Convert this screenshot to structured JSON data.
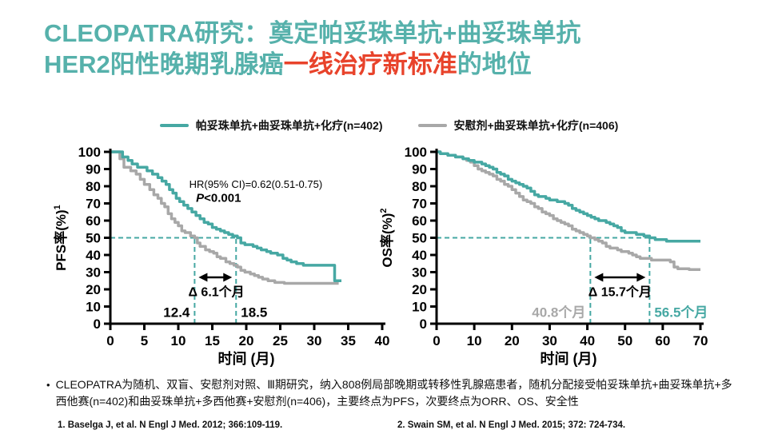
{
  "colors": {
    "teal": "#46A8A3",
    "title_teal": "#56B1AB",
    "red": "#E8432B",
    "gray": "#A8A8A8",
    "black": "#000000"
  },
  "title": {
    "line1": "CLEOPATRA研究：奠定帕妥珠单抗+曲妥珠单抗",
    "line2_pre": "HER2阳性晚期乳腺癌",
    "line2_highlight": "一线治疗新标准",
    "line2_post": "的地位"
  },
  "legend": {
    "items": [
      {
        "label": "帕妥珠单抗+曲妥珠单抗+化疗(n=402)",
        "color_key": "teal"
      },
      {
        "label": "安慰剂+曲妥珠单抗+化疗(n=406)",
        "color_key": "gray"
      }
    ]
  },
  "chart_data": [
    {
      "type": "line",
      "subtype": "kaplan_meier_step",
      "xlabel": "时间 (月)",
      "ylabel": "PFS率(%)",
      "ylabel_sup": "1",
      "xlim": [
        0,
        40
      ],
      "ylim": [
        0,
        100
      ],
      "xticks": [
        0,
        5,
        10,
        15,
        20,
        25,
        30,
        35,
        40
      ],
      "yticks": [
        0,
        10,
        20,
        30,
        40,
        50,
        60,
        70,
        80,
        90,
        100
      ],
      "grid": false,
      "annotations": {
        "hr_text": "HR(95% CI)=0.62(0.51-0.75)",
        "hr_pos": [
          11.6,
          79
        ],
        "p_italic": "P",
        "p_rest": "<0.001",
        "p_pos": [
          12.6,
          71
        ],
        "median_line_y": 50,
        "median_low": 12.4,
        "median_high": 18.5,
        "median_low_label": "12.4",
        "median_high_label": "18.5",
        "median_low_color": "black",
        "median_high_color": "black",
        "delta_label": "Δ 6.1个月",
        "delta_pos": [
          15.6,
          16
        ],
        "arrow_y": 27
      },
      "series": [
        {
          "name": "帕妥珠单抗+曲妥珠单抗+化疗(n=402)",
          "key": "pertuzumab-arm-pfs-curve",
          "color": "teal",
          "median_months": 18.5,
          "points": [
            [
              0,
              100
            ],
            [
              1.8,
              97
            ],
            [
              2.6,
              95
            ],
            [
              3.2,
              93
            ],
            [
              4,
              91
            ],
            [
              5.4,
              89
            ],
            [
              6.2,
              87
            ],
            [
              7,
              85
            ],
            [
              7.6,
              83
            ],
            [
              8.2,
              81
            ],
            [
              8.7,
              78
            ],
            [
              9.2,
              76
            ],
            [
              9.7,
              73
            ],
            [
              10.2,
              71
            ],
            [
              10.8,
              69
            ],
            [
              11.4,
              67
            ],
            [
              12,
              65
            ],
            [
              12.6,
              63
            ],
            [
              13.2,
              61
            ],
            [
              13.8,
              59
            ],
            [
              14.4,
              58
            ],
            [
              15,
              56
            ],
            [
              15.6,
              55
            ],
            [
              16.2,
              54
            ],
            [
              16.8,
              53
            ],
            [
              17.4,
              52
            ],
            [
              18,
              51
            ],
            [
              18.7,
              50
            ],
            [
              19.2,
              47
            ],
            [
              19.8,
              46
            ],
            [
              21,
              45
            ],
            [
              21.6,
              44
            ],
            [
              22.2,
              43
            ],
            [
              23,
              42
            ],
            [
              23.6,
              41
            ],
            [
              24.6,
              40
            ],
            [
              25.4,
              38
            ],
            [
              26,
              37
            ],
            [
              26.6,
              36
            ],
            [
              27.4,
              35
            ],
            [
              28.4,
              34
            ],
            [
              33,
              25
            ],
            [
              34,
              25
            ]
          ]
        },
        {
          "name": "安慰剂+曲妥珠单抗+化疗(n=406)",
          "key": "placebo-arm-pfs-curve",
          "color": "gray",
          "median_months": 12.4,
          "points": [
            [
              0,
              100
            ],
            [
              1.4,
              96
            ],
            [
              2,
              91
            ],
            [
              3,
              89
            ],
            [
              3.8,
              87
            ],
            [
              4.4,
              84
            ],
            [
              5,
              81
            ],
            [
              5.8,
              78
            ],
            [
              6.4,
              75
            ],
            [
              7,
              73
            ],
            [
              7.5,
              70
            ],
            [
              8,
              68
            ],
            [
              8.5,
              64
            ],
            [
              9,
              61
            ],
            [
              9.5,
              59
            ],
            [
              10,
              57
            ],
            [
              10.5,
              54
            ],
            [
              11,
              53
            ],
            [
              11.8,
              51
            ],
            [
              12.4,
              50
            ],
            [
              12.8,
              47
            ],
            [
              13.2,
              45
            ],
            [
              14,
              43
            ],
            [
              14.6,
              42
            ],
            [
              15.2,
              41
            ],
            [
              15.7,
              39
            ],
            [
              16.2,
              38
            ],
            [
              17,
              36
            ],
            [
              17.6,
              35
            ],
            [
              18.2,
              34
            ],
            [
              18.7,
              33
            ],
            [
              19.2,
              31
            ],
            [
              19.8,
              30
            ],
            [
              20.6,
              29
            ],
            [
              21.2,
              28
            ],
            [
              21.8,
              27
            ],
            [
              22.4,
              26
            ],
            [
              23.2,
              25
            ],
            [
              24.2,
              24
            ],
            [
              25.6,
              23.5
            ],
            [
              33.6,
              23.5
            ]
          ]
        }
      ]
    },
    {
      "type": "line",
      "subtype": "kaplan_meier_step",
      "xlabel": "时间 (月)",
      "ylabel": "OS率(%)",
      "ylabel_sup": "2",
      "xlim": [
        0,
        70
      ],
      "ylim": [
        0,
        100
      ],
      "xticks": [
        0,
        10,
        20,
        30,
        40,
        50,
        60,
        70
      ],
      "yticks": [
        0,
        10,
        20,
        30,
        40,
        50,
        60,
        70,
        80,
        90,
        100
      ],
      "grid": false,
      "annotations": {
        "median_line_y": 50,
        "median_low": 40.8,
        "median_high": 56.5,
        "median_low_label": "40.8个月",
        "median_high_label": "56.5个月",
        "median_low_color": "gray",
        "median_high_color": "teal",
        "delta_label": "Δ 15.7个月",
        "delta_pos": [
          48.65,
          16
        ],
        "arrow_y": 27
      },
      "series": [
        {
          "name": "帕妥珠单抗+曲妥珠单抗+化疗(n=402)",
          "key": "pertuzumab-arm-os-curve",
          "color": "teal",
          "median_months": 56.5,
          "points": [
            [
              0,
              100
            ],
            [
              1,
              99
            ],
            [
              3,
              98
            ],
            [
              5,
              97
            ],
            [
              7,
              96
            ],
            [
              8.5,
              95
            ],
            [
              10,
              94
            ],
            [
              12,
              93
            ],
            [
              13,
              92
            ],
            [
              14,
              91
            ],
            [
              15,
              90
            ],
            [
              16,
              88
            ],
            [
              17,
              87
            ],
            [
              18,
              86
            ],
            [
              19,
              84
            ],
            [
              20,
              83
            ],
            [
              21,
              82
            ],
            [
              22,
              81
            ],
            [
              23,
              80
            ],
            [
              24,
              79
            ],
            [
              25,
              77
            ],
            [
              26,
              75
            ],
            [
              27,
              74
            ],
            [
              29,
              73
            ],
            [
              30,
              72
            ],
            [
              32,
              71
            ],
            [
              34,
              70
            ],
            [
              35,
              69
            ],
            [
              36,
              67
            ],
            [
              37,
              66
            ],
            [
              38,
              65
            ],
            [
              39,
              64
            ],
            [
              40,
              63
            ],
            [
              41,
              62
            ],
            [
              42,
              61
            ],
            [
              43,
              60
            ],
            [
              45,
              59
            ],
            [
              46,
              58
            ],
            [
              47,
              57
            ],
            [
              48,
              56
            ],
            [
              49,
              54
            ],
            [
              50,
              53
            ],
            [
              52,
              53
            ],
            [
              53,
              52
            ],
            [
              55,
              51
            ],
            [
              56.5,
              50
            ],
            [
              58,
              49
            ],
            [
              61,
              48
            ],
            [
              70,
              48
            ]
          ]
        },
        {
          "name": "安慰剂+曲妥珠单抗+化疗(n=406)",
          "key": "placebo-arm-os-curve",
          "color": "gray",
          "median_months": 40.8,
          "points": [
            [
              0,
              100
            ],
            [
              1,
              99
            ],
            [
              3,
              98
            ],
            [
              5,
              97
            ],
            [
              7,
              96
            ],
            [
              8,
              95
            ],
            [
              9,
              94
            ],
            [
              10,
              92
            ],
            [
              11,
              90
            ],
            [
              12,
              89
            ],
            [
              13,
              88
            ],
            [
              14,
              87
            ],
            [
              15,
              86
            ],
            [
              16,
              84
            ],
            [
              17,
              83
            ],
            [
              18,
              81
            ],
            [
              19,
              80
            ],
            [
              20,
              78
            ],
            [
              21,
              76
            ],
            [
              22,
              74
            ],
            [
              23,
              72
            ],
            [
              24,
              71
            ],
            [
              25,
              70
            ],
            [
              26,
              68
            ],
            [
              27,
              67
            ],
            [
              28,
              65
            ],
            [
              29,
              64
            ],
            [
              30,
              63
            ],
            [
              31,
              61
            ],
            [
              32,
              60
            ],
            [
              33,
              59
            ],
            [
              34,
              58
            ],
            [
              35,
              57
            ],
            [
              36,
              55
            ],
            [
              37,
              54
            ],
            [
              38,
              53
            ],
            [
              39,
              52
            ],
            [
              40,
              51
            ],
            [
              40.8,
              50
            ],
            [
              42,
              49
            ],
            [
              43,
              48
            ],
            [
              44,
              47
            ],
            [
              45,
              45
            ],
            [
              46,
              44
            ],
            [
              48,
              43
            ],
            [
              49,
              42
            ],
            [
              51,
              41
            ],
            [
              52,
              40
            ],
            [
              53,
              39
            ],
            [
              54,
              38
            ],
            [
              57,
              37
            ],
            [
              62,
              36
            ],
            [
              63,
              33
            ],
            [
              64,
              32
            ],
            [
              67,
              31.5
            ],
            [
              70,
              31.5
            ]
          ]
        }
      ]
    }
  ],
  "footnote": {
    "bullet": "•",
    "text": "CLEOPATRA为随机、双盲、安慰剂对照、Ⅲ期研究，纳入808例局部晚期或转移性乳腺癌患者，随机分配接受帕妥珠单抗+曲妥珠单抗+多西他赛(n=402)和曲妥珠单抗+多西他赛+安慰剂(n=406)，主要终点为PFS，次要终点为ORR、OS、安全性"
  },
  "references": [
    {
      "text": "1. Baselga J, et al. N Engl J Med. 2012; 366:109-119."
    },
    {
      "text": "2. Swain SM, et al. N Engl J Med. 2015; 372: 724-734."
    }
  ]
}
